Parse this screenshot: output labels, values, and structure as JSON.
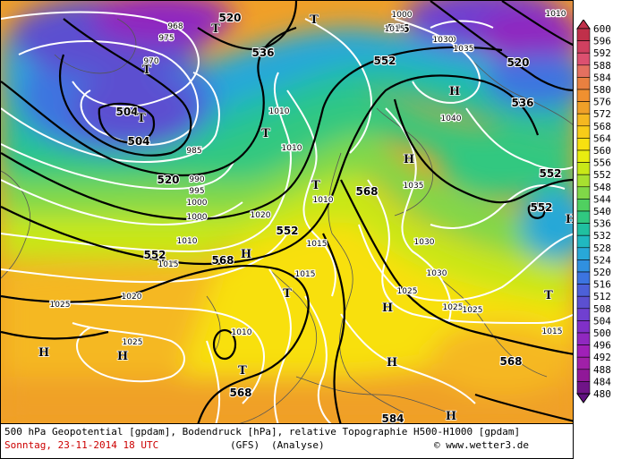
{
  "caption": {
    "title": "500 hPa Geopotential [gpdam], Bodendruck [hPa], relative Topographie H500-H1000 [gpdam]",
    "date": "Sonntag, 23-11-2014  18 UTC",
    "model": "(GFS)",
    "run": "(Analyse)",
    "copyright": "© www.wetter3.de"
  },
  "legend": {
    "labels": [
      "600",
      "596",
      "592",
      "588",
      "584",
      "580",
      "576",
      "572",
      "568",
      "564",
      "560",
      "556",
      "552",
      "548",
      "544",
      "540",
      "536",
      "532",
      "528",
      "524",
      "520",
      "516",
      "512",
      "508",
      "504",
      "500",
      "496",
      "492",
      "488",
      "484",
      "480"
    ],
    "colors": [
      "#c0304a",
      "#d04060",
      "#dc5070",
      "#e47060",
      "#e98040",
      "#f09030",
      "#f0a028",
      "#f5b820",
      "#f8cc18",
      "#f8e010",
      "#e8ec10",
      "#c8e818",
      "#a8e030",
      "#80d848",
      "#50d060",
      "#30c880",
      "#20c0a0",
      "#20b8c0",
      "#28a8d8",
      "#3090e0",
      "#3c74e0",
      "#4c60d8",
      "#5c50d0",
      "#7040d0",
      "#8030c8",
      "#9028c0",
      "#a020b8",
      "#a020a8",
      "#901898",
      "#701488",
      "#601080"
    ]
  },
  "map": {
    "contour_labels": [
      {
        "text": "520",
        "kind": "geo"
      },
      {
        "text": "504",
        "kind": "geo"
      },
      {
        "text": "536",
        "kind": "geo"
      },
      {
        "text": "552",
        "kind": "geo"
      },
      {
        "text": "520",
        "kind": "geo"
      },
      {
        "text": "536",
        "kind": "geo"
      },
      {
        "text": "552",
        "kind": "geo"
      },
      {
        "text": "552",
        "kind": "geo"
      },
      {
        "text": "536",
        "kind": "geo"
      },
      {
        "text": "520",
        "kind": "geo"
      },
      {
        "text": "504",
        "kind": "geo"
      },
      {
        "text": "552",
        "kind": "geo"
      },
      {
        "text": "568",
        "kind": "geo"
      },
      {
        "text": "568",
        "kind": "geo"
      },
      {
        "text": "568",
        "kind": "geo"
      },
      {
        "text": "568",
        "kind": "geo"
      },
      {
        "text": "584",
        "kind": "geo"
      },
      {
        "text": "552",
        "kind": "geo"
      },
      {
        "text": "568",
        "kind": "geo"
      },
      {
        "text": "968",
        "kind": "pres"
      },
      {
        "text": "975",
        "kind": "pres"
      },
      {
        "text": "970",
        "kind": "pres"
      },
      {
        "text": "985",
        "kind": "pres"
      },
      {
        "text": "990",
        "kind": "pres"
      },
      {
        "text": "995",
        "kind": "pres"
      },
      {
        "text": "1000",
        "kind": "pres"
      },
      {
        "text": "1000",
        "kind": "pres"
      },
      {
        "text": "1010",
        "kind": "pres"
      },
      {
        "text": "1010",
        "kind": "pres"
      },
      {
        "text": "1010",
        "kind": "pres"
      },
      {
        "text": "1010",
        "kind": "pres"
      },
      {
        "text": "1015",
        "kind": "pres"
      },
      {
        "text": "1015",
        "kind": "pres"
      },
      {
        "text": "1015",
        "kind": "pres"
      },
      {
        "text": "1020",
        "kind": "pres"
      },
      {
        "text": "1020",
        "kind": "pres"
      },
      {
        "text": "1025",
        "kind": "pres"
      },
      {
        "text": "1025",
        "kind": "pres"
      },
      {
        "text": "1025",
        "kind": "pres"
      },
      {
        "text": "1025",
        "kind": "pres"
      },
      {
        "text": "1030",
        "kind": "pres"
      },
      {
        "text": "1030",
        "kind": "pres"
      },
      {
        "text": "1035",
        "kind": "pres"
      },
      {
        "text": "1035",
        "kind": "pres"
      },
      {
        "text": "1040",
        "kind": "pres"
      },
      {
        "text": "1000",
        "kind": "pres"
      },
      {
        "text": "1010",
        "kind": "pres"
      },
      {
        "text": "1015",
        "kind": "pres"
      },
      {
        "text": "1020",
        "kind": "pres"
      },
      {
        "text": "1025",
        "kind": "pres"
      },
      {
        "text": "1030",
        "kind": "pres"
      },
      {
        "text": "1010",
        "kind": "pres"
      },
      {
        "text": "1015",
        "kind": "pres"
      }
    ],
    "pressure_systems": [
      {
        "text": "T"
      },
      {
        "text": "T"
      },
      {
        "text": "T"
      },
      {
        "text": "T"
      },
      {
        "text": "T"
      },
      {
        "text": "T"
      },
      {
        "text": "T"
      },
      {
        "text": "T"
      },
      {
        "text": "T"
      },
      {
        "text": "H"
      },
      {
        "text": "H"
      },
      {
        "text": "H"
      },
      {
        "text": "H"
      },
      {
        "text": "H"
      },
      {
        "text": "H"
      },
      {
        "text": "H"
      },
      {
        "text": "H"
      },
      {
        "text": "H"
      }
    ]
  }
}
